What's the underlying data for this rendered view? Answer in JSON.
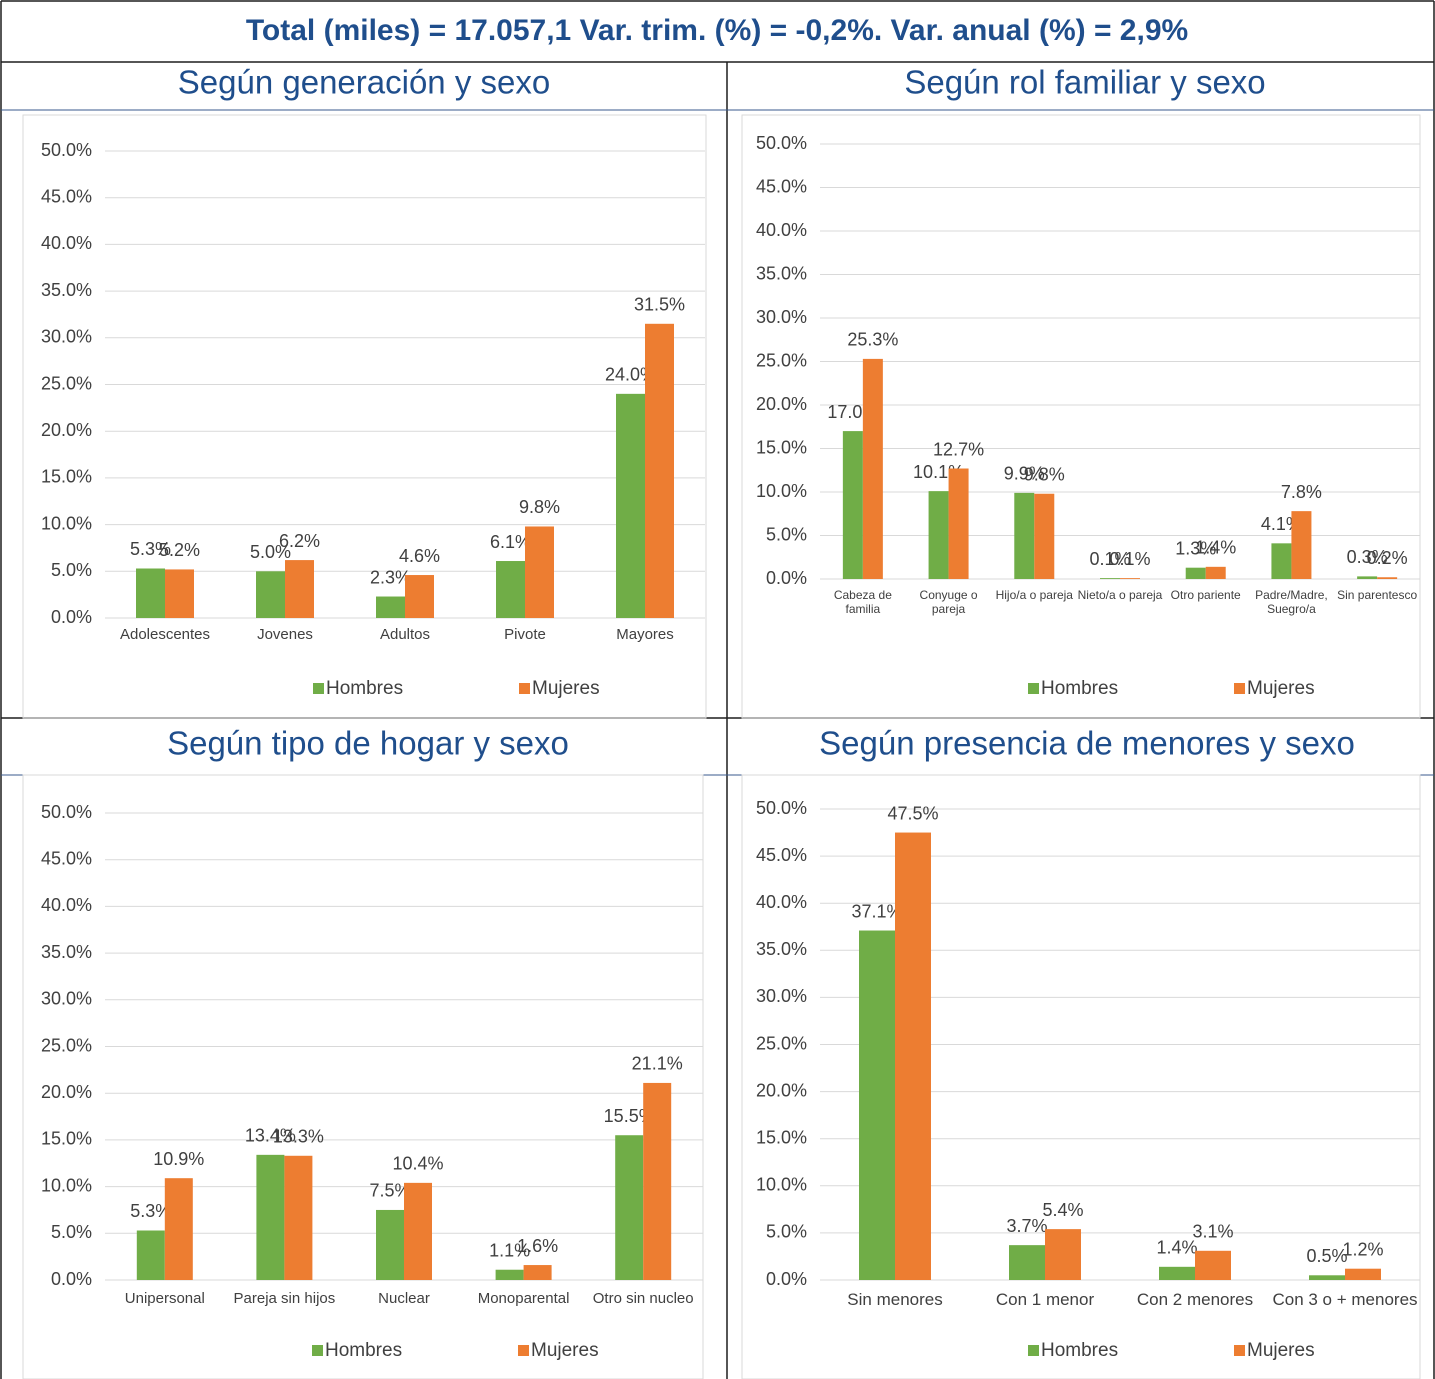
{
  "title": "Total (miles) = 17.057,1 Var. trim. (%) = -0,2%. Var. anual (%) = 2,9%",
  "chart_data": [
    {
      "type": "bar",
      "title": "Según generación y sexo",
      "categories": [
        "Adolescentes",
        "Jovenes",
        "Adultos",
        "Pivote",
        "Mayores"
      ],
      "series": [
        {
          "name": "Hombres",
          "color": "#70ad47",
          "values": [
            5.3,
            5.0,
            2.3,
            6.1,
            24.0
          ],
          "value_labels": [
            "5.3%",
            "5.0%",
            "2.3%",
            "6.1%",
            "24.0%"
          ]
        },
        {
          "name": "Mujeres",
          "color": "#ed7d31",
          "values": [
            5.2,
            6.2,
            4.6,
            9.8,
            31.5
          ],
          "value_labels": [
            "5.2%",
            "6.2%",
            "4.6%",
            "9.8%",
            "31.5%"
          ]
        }
      ],
      "ylim": [
        0,
        50
      ],
      "yticks": [
        {
          "value": 0,
          "label": "0.0%"
        },
        {
          "value": 5,
          "label": "5.0%"
        },
        {
          "value": 10,
          "label": "10.0%"
        },
        {
          "value": 15,
          "label": "15.0%"
        },
        {
          "value": 20,
          "label": "20.0%"
        },
        {
          "value": 25,
          "label": "25.0%"
        },
        {
          "value": 30,
          "label": "30.0%"
        },
        {
          "value": 35,
          "label": "35.0%"
        },
        {
          "value": 40,
          "label": "40.0%"
        },
        {
          "value": 45,
          "label": "45.0%"
        },
        {
          "value": 50,
          "label": "50.0%"
        }
      ],
      "grid": true,
      "legend": "bottom"
    },
    {
      "type": "bar",
      "title": "Según rol familiar y sexo",
      "categories": [
        "Cabeza de familia",
        "Conyuge o pareja",
        "Hijo/a o pareja",
        "Nieto/a o pareja",
        "Otro pariente",
        "Padre/Madre, Suegro/a",
        "Sin parentesco"
      ],
      "series": [
        {
          "name": "Hombres",
          "color": "#70ad47",
          "values": [
            17.0,
            10.1,
            9.9,
            0.1,
            1.3,
            4.1,
            0.3
          ],
          "value_labels": [
            "17.0%",
            "10.1%",
            "9.9%",
            "0.1%",
            "1.3%",
            "4.1%",
            "0.3%"
          ]
        },
        {
          "name": "Mujeres",
          "color": "#ed7d31",
          "values": [
            25.3,
            12.7,
            9.8,
            0.1,
            1.4,
            7.8,
            0.2
          ],
          "value_labels": [
            "25.3%",
            "12.7%",
            "9.8%",
            "0.1%",
            "1.4%",
            "7.8%",
            "0.2%"
          ]
        }
      ],
      "ylim": [
        0,
        50
      ],
      "yticks": [
        {
          "value": 0,
          "label": "0.0%"
        },
        {
          "value": 5,
          "label": "5.0%"
        },
        {
          "value": 10,
          "label": "10.0%"
        },
        {
          "value": 15,
          "label": "15.0%"
        },
        {
          "value": 20,
          "label": "20.0%"
        },
        {
          "value": 25,
          "label": "25.0%"
        },
        {
          "value": 30,
          "label": "30.0%"
        },
        {
          "value": 35,
          "label": "35.0%"
        },
        {
          "value": 40,
          "label": "40.0%"
        },
        {
          "value": 45,
          "label": "45.0%"
        },
        {
          "value": 50,
          "label": "50.0%"
        }
      ],
      "grid": true,
      "legend": "bottom"
    },
    {
      "type": "bar",
      "title": "Según tipo de hogar y sexo",
      "categories": [
        "Unipersonal",
        "Pareja sin hijos",
        "Nuclear",
        "Monoparental",
        "Otro sin nucleo"
      ],
      "series": [
        {
          "name": "Hombres",
          "color": "#70ad47",
          "values": [
            5.3,
            13.4,
            7.5,
            1.1,
            15.5
          ],
          "value_labels": [
            "5.3%",
            "13.4%",
            "7.5%",
            "1.1%",
            "15.5%"
          ]
        },
        {
          "name": "Mujeres",
          "color": "#ed7d31",
          "values": [
            10.9,
            13.3,
            10.4,
            1.6,
            21.1
          ],
          "value_labels": [
            "10.9%",
            "13.3%",
            "10.4%",
            "1.6%",
            "21.1%"
          ]
        }
      ],
      "ylim": [
        0,
        50
      ],
      "yticks": [
        {
          "value": 0,
          "label": "0.0%"
        },
        {
          "value": 5,
          "label": "5.0%"
        },
        {
          "value": 10,
          "label": "10.0%"
        },
        {
          "value": 15,
          "label": "15.0%"
        },
        {
          "value": 20,
          "label": "20.0%"
        },
        {
          "value": 25,
          "label": "25.0%"
        },
        {
          "value": 30,
          "label": "30.0%"
        },
        {
          "value": 35,
          "label": "35.0%"
        },
        {
          "value": 40,
          "label": "40.0%"
        },
        {
          "value": 45,
          "label": "45.0%"
        },
        {
          "value": 50,
          "label": "50.0%"
        }
      ],
      "grid": true,
      "legend": "bottom"
    },
    {
      "type": "bar",
      "title": "Según presencia de menores y sexo",
      "categories": [
        "Sin menores",
        "Con 1 menor",
        "Con 2 menores",
        "Con 3 o + menores"
      ],
      "series": [
        {
          "name": "Hombres",
          "color": "#70ad47",
          "values": [
            37.1,
            3.7,
            1.4,
            0.5
          ],
          "value_labels": [
            "37.1%",
            "3.7%",
            "1.4%",
            "0.5%"
          ]
        },
        {
          "name": "Mujeres",
          "color": "#ed7d31",
          "values": [
            47.5,
            5.4,
            3.1,
            1.2
          ],
          "value_labels": [
            "47.5%",
            "5.4%",
            "3.1%",
            "1.2%"
          ]
        }
      ],
      "ylim": [
        0,
        50
      ],
      "yticks": [
        {
          "value": 0,
          "label": "0.0%"
        },
        {
          "value": 5,
          "label": "5.0%"
        },
        {
          "value": 10,
          "label": "10.0%"
        },
        {
          "value": 15,
          "label": "15.0%"
        },
        {
          "value": 20,
          "label": "20.0%"
        },
        {
          "value": 25,
          "label": "25.0%"
        },
        {
          "value": 30,
          "label": "30.0%"
        },
        {
          "value": 35,
          "label": "35.0%"
        },
        {
          "value": 40,
          "label": "40.0%"
        },
        {
          "value": 45,
          "label": "45.0%"
        },
        {
          "value": 50,
          "label": "50.0%"
        }
      ],
      "grid": true,
      "legend": "bottom"
    }
  ]
}
